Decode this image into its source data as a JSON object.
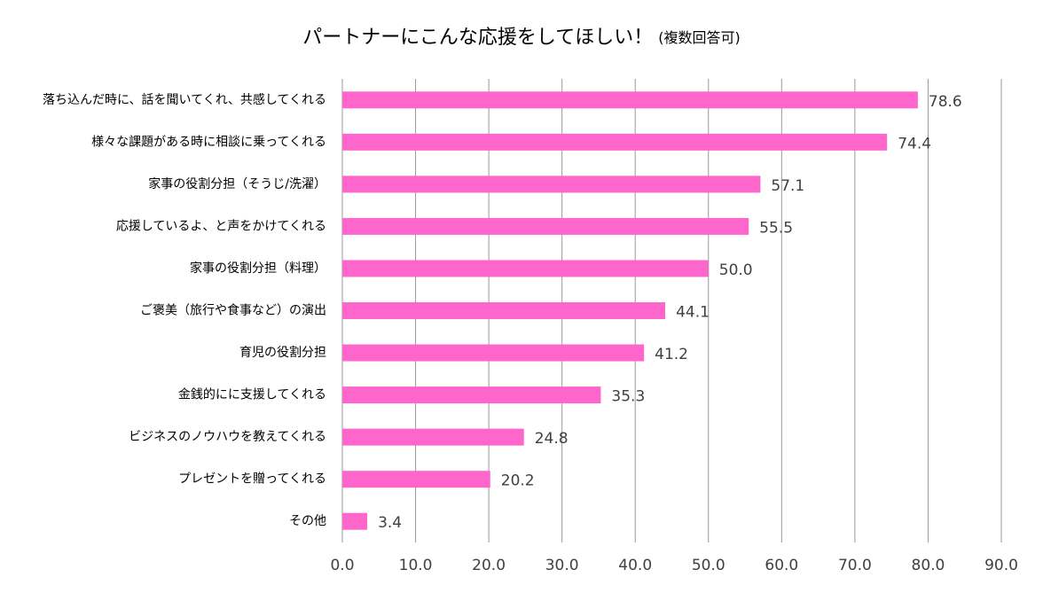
{
  "chart_data": {
    "type": "bar",
    "orientation": "horizontal",
    "title": "パートナーにこんな応援をしてほしい！",
    "subtitle": "(複数回答可)",
    "categories": [
      "落ち込んだ時に、話を聞いてくれ、共感してくれる",
      "様々な課題がある時に相談に乗ってくれる",
      "家事の役割分担（そうじ/洗濯）",
      "応援しているよ、と声をかけてくれる",
      "家事の役割分担（料理）",
      "ご褒美（旅行や食事など）の演出",
      "育児の役割分担",
      "金銭的にに支援してくれる",
      "ビジネスのノウハウを教えてくれる",
      "プレゼントを贈ってくれる",
      "その他"
    ],
    "values": [
      78.6,
      74.4,
      57.1,
      55.5,
      50,
      44.1,
      41.2,
      35.3,
      24.8,
      20.2,
      3.4
    ],
    "value_labels": [
      "78.6",
      "74.4",
      "57.1",
      "55.5",
      "50.0",
      "44.1",
      "41.2",
      "35.3",
      "24.8",
      "20.2",
      "3.4"
    ],
    "color": "#ff66cc",
    "xlim": [
      0,
      90
    ],
    "xticks": [
      {
        "value": 0,
        "label": "0.0"
      },
      {
        "value": 10,
        "label": "10.0"
      },
      {
        "value": 20,
        "label": "20.0"
      },
      {
        "value": 30,
        "label": "30.0"
      },
      {
        "value": 40,
        "label": "40.0"
      },
      {
        "value": 50,
        "label": "50.0"
      },
      {
        "value": 60,
        "label": "60.0"
      },
      {
        "value": 70,
        "label": "70.0"
      },
      {
        "value": 80,
        "label": "80.0"
      },
      {
        "value": 90,
        "label": "90.0"
      }
    ],
    "grid": true
  }
}
